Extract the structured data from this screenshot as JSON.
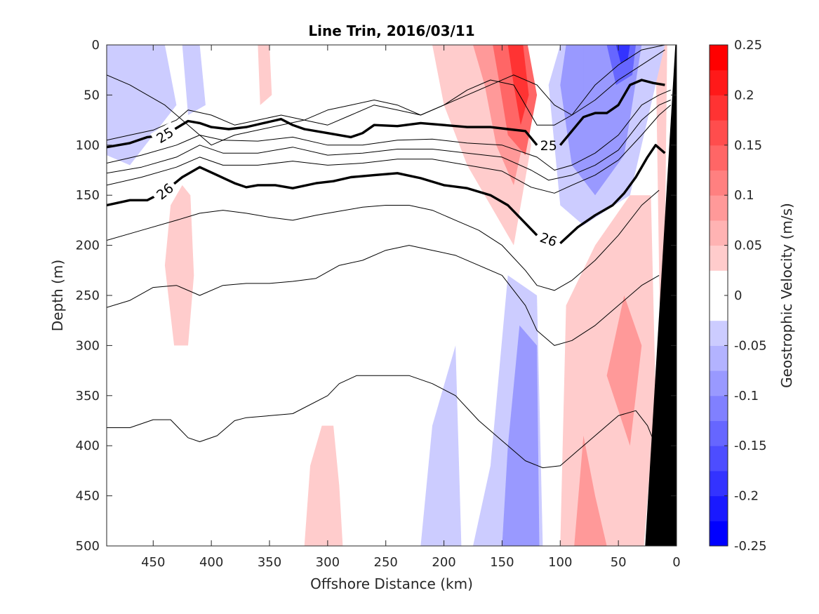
{
  "chart_data": {
    "type": "contour",
    "title": "Line Trin, 2016/03/11",
    "xlabel": "Offshore Distance (km)",
    "ylabel": "Depth (m)",
    "xlim": [
      490,
      0
    ],
    "ylim": [
      0,
      500
    ],
    "x_reversed": true,
    "y_reversed": true,
    "x_ticks": [
      "450",
      "400",
      "350",
      "300",
      "250",
      "200",
      "150",
      "100",
      "50",
      "0"
    ],
    "y_ticks": [
      "0",
      "50",
      "100",
      "150",
      "200",
      "250",
      "300",
      "350",
      "400",
      "450",
      "500"
    ],
    "colorbar": {
      "label": "Geostrophic Velocity (m/s)",
      "range": [
        -0.25,
        0.25
      ],
      "tick_labels": [
        "0.25",
        "0.2",
        "0.15",
        "0.1",
        "0.05",
        "0",
        "-0.05",
        "-0.1",
        "-0.15",
        "-0.2",
        "-0.25"
      ],
      "levels": [
        -0.25,
        -0.225,
        -0.2,
        -0.175,
        -0.15,
        -0.125,
        -0.1,
        -0.075,
        -0.05,
        -0.025,
        0,
        0.025,
        0.05,
        0.075,
        0.1,
        0.125,
        0.15,
        0.175,
        0.2,
        0.225,
        0.25
      ],
      "negative_color": "#0000ff",
      "positive_color": "#ff0000",
      "zero_color": "#ffffff"
    },
    "velocity_patches": [
      {
        "v": 0.05,
        "points": [
          [
            320,
            500
          ],
          [
            315,
            420
          ],
          [
            305,
            380
          ],
          [
            295,
            380
          ],
          [
            290,
            440
          ],
          [
            287,
            500
          ]
        ]
      },
      {
        "v": 0.05,
        "points": [
          [
            425,
            140
          ],
          [
            435,
            160
          ],
          [
            440,
            220
          ],
          [
            432,
            300
          ],
          [
            420,
            300
          ],
          [
            415,
            230
          ],
          [
            418,
            150
          ]
        ]
      },
      {
        "v": 0.05,
        "points": [
          [
            360,
            0
          ],
          [
            350,
            0
          ],
          [
            348,
            50
          ],
          [
            358,
            60
          ]
        ]
      },
      {
        "v": 0.05,
        "points": [
          [
            210,
            0
          ],
          [
            140,
            0
          ],
          [
            125,
            100
          ],
          [
            140,
            200
          ],
          [
            160,
            160
          ],
          [
            180,
            120
          ],
          [
            200,
            60
          ]
        ]
      },
      {
        "v": 0.1,
        "points": [
          [
            175,
            0
          ],
          [
            145,
            0
          ],
          [
            125,
            60
          ],
          [
            140,
            140
          ],
          [
            155,
            100
          ],
          [
            165,
            40
          ]
        ]
      },
      {
        "v": 0.15,
        "points": [
          [
            158,
            0
          ],
          [
            128,
            0
          ],
          [
            120,
            50
          ],
          [
            130,
            110
          ],
          [
            145,
            90
          ],
          [
            152,
            40
          ]
        ]
      },
      {
        "v": 0.2,
        "points": [
          [
            145,
            0
          ],
          [
            132,
            0
          ],
          [
            127,
            50
          ],
          [
            134,
            80
          ],
          [
            140,
            40
          ]
        ]
      },
      {
        "v": 0.05,
        "points": [
          [
            100,
            500
          ],
          [
            95,
            260
          ],
          [
            70,
            200
          ],
          [
            40,
            150
          ],
          [
            22,
            150
          ],
          [
            18,
            350
          ],
          [
            28,
            500
          ]
        ]
      },
      {
        "v": 0.1,
        "points": [
          [
            88,
            500
          ],
          [
            80,
            390
          ],
          [
            70,
            450
          ],
          [
            60,
            500
          ]
        ]
      },
      {
        "v": 0.1,
        "points": [
          [
            60,
            330
          ],
          [
            45,
            250
          ],
          [
            30,
            300
          ],
          [
            40,
            400
          ]
        ]
      },
      {
        "v": 0.05,
        "points": [
          [
            18,
            0
          ],
          [
            8,
            0
          ],
          [
            10,
            200
          ],
          [
            14,
            300
          ]
        ]
      },
      {
        "v": -0.05,
        "points": [
          [
            490,
            0
          ],
          [
            440,
            0
          ],
          [
            430,
            60
          ],
          [
            470,
            120
          ],
          [
            490,
            110
          ]
        ]
      },
      {
        "v": -0.05,
        "points": [
          [
            220,
            500
          ],
          [
            210,
            380
          ],
          [
            190,
            300
          ],
          [
            185,
            500
          ]
        ]
      },
      {
        "v": -0.05,
        "points": [
          [
            175,
            500
          ],
          [
            160,
            420
          ],
          [
            145,
            230
          ],
          [
            120,
            250
          ],
          [
            115,
            500
          ]
        ]
      },
      {
        "v": -0.05,
        "points": [
          [
            100,
            0
          ],
          [
            10,
            0
          ],
          [
            40,
            150
          ],
          [
            80,
            180
          ],
          [
            100,
            160
          ],
          [
            110,
            40
          ]
        ]
      },
      {
        "v": -0.1,
        "points": [
          [
            150,
            500
          ],
          [
            145,
            400
          ],
          [
            135,
            280
          ],
          [
            120,
            300
          ],
          [
            118,
            500
          ]
        ]
      },
      {
        "v": -0.1,
        "points": [
          [
            95,
            0
          ],
          [
            30,
            0
          ],
          [
            45,
            110
          ],
          [
            70,
            150
          ],
          [
            90,
            120
          ],
          [
            100,
            40
          ]
        ]
      },
      {
        "v": -0.05,
        "points": [
          [
            425,
            0
          ],
          [
            410,
            0
          ],
          [
            405,
            60
          ],
          [
            420,
            70
          ]
        ]
      },
      {
        "v": -0.1,
        "points": [
          [
            80,
            0
          ],
          [
            35,
            0
          ],
          [
            40,
            60
          ],
          [
            60,
            80
          ],
          [
            80,
            60
          ]
        ]
      },
      {
        "v": -0.15,
        "points": [
          [
            60,
            0
          ],
          [
            35,
            0
          ],
          [
            38,
            30
          ],
          [
            52,
            40
          ]
        ]
      },
      {
        "v": -0.2,
        "points": [
          [
            52,
            0
          ],
          [
            40,
            0
          ],
          [
            42,
            15
          ],
          [
            48,
            18
          ]
        ]
      }
    ],
    "contours": [
      {
        "level": "",
        "bold": false,
        "x": [
          490,
          470,
          440,
          420,
          400,
          380,
          360,
          340,
          320,
          300,
          280,
          260,
          240,
          220,
          200,
          180,
          160,
          140,
          120,
          105,
          90,
          70,
          50,
          30,
          10
        ],
        "y": [
          30,
          40,
          60,
          80,
          100,
          90,
          85,
          80,
          75,
          65,
          60,
          55,
          60,
          70,
          60,
          50,
          40,
          30,
          40,
          60,
          70,
          40,
          20,
          5,
          0
        ]
      },
      {
        "level": "",
        "bold": false,
        "x": [
          490,
          470,
          450,
          430,
          420,
          400,
          380,
          360,
          340,
          320,
          300,
          280,
          260,
          240,
          220,
          200,
          180,
          160,
          140,
          130,
          120,
          105,
          90,
          70,
          50,
          30,
          10
        ],
        "y": [
          95,
          90,
          85,
          75,
          65,
          70,
          80,
          75,
          70,
          75,
          80,
          70,
          60,
          65,
          70,
          60,
          45,
          35,
          40,
          60,
          80,
          80,
          70,
          55,
          35,
          20,
          5
        ]
      },
      {
        "level": "25",
        "bold": true,
        "x": [
          490,
          470,
          455,
          440,
          420,
          410,
          400,
          385,
          370,
          355,
          340,
          330,
          320,
          300,
          280,
          270,
          260,
          240,
          220,
          200,
          180,
          160,
          145,
          130,
          120
        ],
        "y": [
          102,
          98,
          92,
          90,
          76,
          78,
          82,
          84,
          82,
          78,
          74,
          80,
          84,
          88,
          92,
          88,
          80,
          81,
          78,
          80,
          82,
          82,
          84,
          86,
          100
        ]
      },
      {
        "level": "25",
        "bold": true,
        "x": [
          100,
          80,
          70,
          60,
          50,
          40,
          30,
          20,
          10
        ],
        "y": [
          100,
          72,
          68,
          68,
          60,
          40,
          35,
          38,
          40
        ]
      },
      {
        "level": "",
        "bold": false,
        "x": [
          490,
          460,
          430,
          410,
          390,
          360,
          330,
          300,
          270,
          240,
          210,
          180,
          150,
          120,
          105,
          90,
          70,
          50,
          30,
          15,
          5
        ],
        "y": [
          118,
          110,
          100,
          90,
          95,
          96,
          92,
          100,
          100,
          95,
          94,
          98,
          100,
          112,
          125,
          120,
          108,
          90,
          60,
          50,
          45
        ]
      },
      {
        "level": "",
        "bold": false,
        "x": [
          490,
          460,
          430,
          410,
          390,
          360,
          330,
          300,
          270,
          240,
          210,
          180,
          150,
          125,
          110,
          90,
          70,
          50,
          30,
          15,
          5
        ],
        "y": [
          128,
          122,
          112,
          100,
          108,
          108,
          102,
          110,
          108,
          104,
          104,
          108,
          112,
          125,
          135,
          130,
          120,
          105,
          75,
          60,
          55
        ]
      },
      {
        "level": "",
        "bold": false,
        "x": [
          490,
          460,
          430,
          410,
          390,
          360,
          330,
          300,
          270,
          240,
          210,
          180,
          150,
          125,
          105,
          90,
          70,
          50,
          30,
          15,
          5
        ],
        "y": [
          140,
          132,
          122,
          112,
          120,
          120,
          116,
          120,
          118,
          114,
          114,
          120,
          126,
          142,
          148,
          140,
          130,
          115,
          90,
          70,
          60
        ]
      },
      {
        "level": "26",
        "bold": true,
        "x": [
          490,
          470,
          455,
          440,
          425,
          410,
          395,
          380,
          370,
          360,
          345,
          330,
          310,
          295,
          280,
          260,
          240,
          220,
          200,
          180,
          160,
          145,
          130,
          120
        ],
        "y": [
          160,
          155,
          155,
          146,
          132,
          122,
          130,
          138,
          142,
          140,
          140,
          143,
          138,
          136,
          132,
          130,
          128,
          133,
          140,
          143,
          150,
          160,
          178,
          190
        ]
      },
      {
        "level": "26",
        "bold": true,
        "x": [
          100,
          85,
          70,
          55,
          45,
          35,
          25,
          18,
          10
        ],
        "y": [
          198,
          182,
          170,
          160,
          148,
          132,
          112,
          100,
          108
        ]
      },
      {
        "level": "",
        "bold": false,
        "x": [
          490,
          460,
          430,
          410,
          390,
          370,
          350,
          330,
          310,
          290,
          270,
          250,
          230,
          210,
          190,
          170,
          150,
          130,
          120,
          105,
          90,
          70,
          50,
          30,
          15
        ],
        "y": [
          195,
          185,
          175,
          168,
          165,
          168,
          172,
          175,
          170,
          166,
          162,
          160,
          160,
          165,
          175,
          185,
          200,
          225,
          240,
          245,
          235,
          215,
          190,
          160,
          145
        ]
      },
      {
        "level": "",
        "bold": false,
        "x": [
          490,
          470,
          450,
          430,
          410,
          390,
          370,
          350,
          330,
          310,
          290,
          270,
          250,
          230,
          210,
          190,
          170,
          150,
          130,
          120,
          105,
          90,
          70,
          50,
          30,
          15
        ],
        "y": [
          262,
          255,
          242,
          240,
          250,
          240,
          238,
          238,
          236,
          233,
          220,
          215,
          205,
          200,
          205,
          210,
          220,
          230,
          260,
          285,
          300,
          295,
          280,
          260,
          240,
          230
        ]
      },
      {
        "level": "",
        "bold": false,
        "x": [
          490,
          470,
          450,
          435,
          420,
          410,
          395,
          380,
          370,
          350,
          330,
          300,
          290,
          275,
          250,
          230,
          210,
          190,
          170,
          150,
          130,
          115,
          100,
          85,
          70,
          50,
          35,
          25,
          18
        ],
        "y": [
          382,
          382,
          374,
          374,
          392,
          396,
          390,
          375,
          372,
          370,
          368,
          350,
          338,
          330,
          330,
          330,
          338,
          350,
          375,
          395,
          415,
          422,
          420,
          405,
          390,
          370,
          365,
          380,
          400
        ]
      }
    ],
    "bathymetry_label": "",
    "bathymetry_color": "#000000",
    "bathymetry": [
      [
        0,
        0
      ],
      [
        0,
        500
      ],
      [
        27,
        500
      ],
      [
        1,
        0
      ]
    ]
  }
}
